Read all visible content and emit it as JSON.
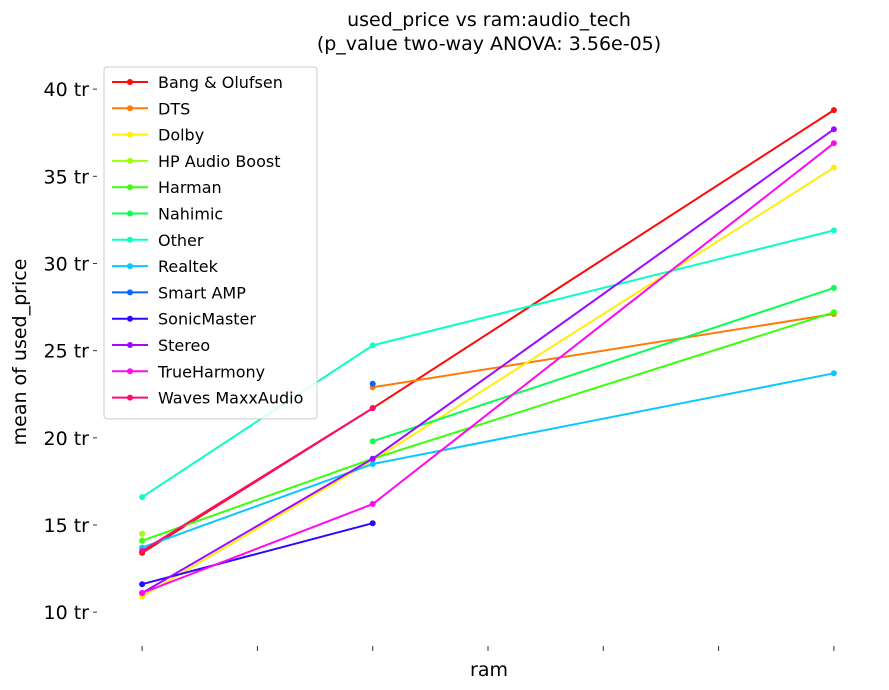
{
  "chart_data": {
    "type": "line",
    "title": "used_price vs ram:audio_tech",
    "subtitle": "(p_value two-way ANOVA: 3.56e-05)",
    "xlabel": "ram",
    "ylabel": "mean of used_price",
    "x_ticks": [
      0,
      1,
      2,
      3,
      4,
      5,
      6
    ],
    "xlim": [
      -0.4,
      6.4
    ],
    "ylim": [
      8,
      41.5
    ],
    "y_ticks": [
      {
        "value": 10,
        "label": "10 tr"
      },
      {
        "value": 15,
        "label": "15 tr"
      },
      {
        "value": 20,
        "label": "20 tr"
      },
      {
        "value": 25,
        "label": "25 tr"
      },
      {
        "value": 30,
        "label": "30 tr"
      },
      {
        "value": 35,
        "label": "35 tr"
      },
      {
        "value": 40,
        "label": "40 tr"
      }
    ],
    "grid": false,
    "legend_position": "top-left",
    "series": [
      {
        "name": "Bang & Olufsen",
        "color": "#ff0a0a",
        "points": [
          [
            0,
            13.4
          ],
          [
            2,
            21.7
          ],
          [
            6,
            38.8
          ]
        ]
      },
      {
        "name": "DTS",
        "color": "#ff7a0a",
        "points": [
          [
            2,
            22.9
          ],
          [
            6,
            27.1
          ]
        ]
      },
      {
        "name": "Dolby",
        "color": "#ffee0a",
        "points": [
          [
            0,
            10.9
          ],
          [
            2,
            18.7
          ],
          [
            6,
            35.5
          ]
        ]
      },
      {
        "name": "HP Audio Boost",
        "color": "#9dff0a",
        "points": [
          [
            0,
            14.5
          ]
        ]
      },
      {
        "name": "Harman",
        "color": "#3cff0a",
        "points": [
          [
            0,
            14.1
          ],
          [
            2,
            18.8
          ],
          [
            6,
            27.2
          ]
        ]
      },
      {
        "name": "Nahimic",
        "color": "#0aff50",
        "points": [
          [
            2,
            19.8
          ],
          [
            6,
            28.6
          ]
        ]
      },
      {
        "name": "Other",
        "color": "#0affc4",
        "points": [
          [
            0,
            16.6
          ],
          [
            2,
            25.3
          ],
          [
            6,
            31.9
          ]
        ]
      },
      {
        "name": "Realtek",
        "color": "#0ac8ff",
        "points": [
          [
            0,
            13.7
          ],
          [
            2,
            18.5
          ],
          [
            6,
            23.7
          ]
        ]
      },
      {
        "name": "Smart AMP",
        "color": "#0a64ff",
        "points": [
          [
            2,
            23.1
          ]
        ]
      },
      {
        "name": "SonicMaster",
        "color": "#2a0aff",
        "points": [
          [
            0,
            11.6
          ],
          [
            2,
            15.1
          ]
        ]
      },
      {
        "name": "Stereo",
        "color": "#9d0aff",
        "points": [
          [
            0,
            11.1
          ],
          [
            2,
            18.8
          ],
          [
            6,
            37.7
          ]
        ]
      },
      {
        "name": "TrueHarmony",
        "color": "#ff0aee",
        "points": [
          [
            0,
            11.1
          ],
          [
            2,
            16.2
          ],
          [
            6,
            36.9
          ]
        ]
      },
      {
        "name": "Waves MaxxAudio",
        "color": "#ff0a72",
        "points": [
          [
            0,
            13.5
          ],
          [
            2,
            21.7
          ]
        ]
      }
    ]
  }
}
